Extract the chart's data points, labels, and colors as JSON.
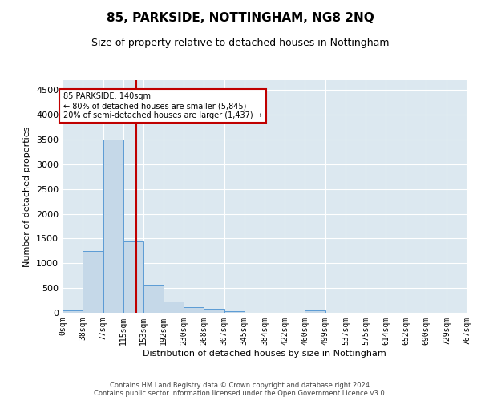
{
  "title": "85, PARKSIDE, NOTTINGHAM, NG8 2NQ",
  "subtitle": "Size of property relative to detached houses in Nottingham",
  "xlabel": "Distribution of detached houses by size in Nottingham",
  "ylabel": "Number of detached properties",
  "footer_line1": "Contains HM Land Registry data © Crown copyright and database right 2024.",
  "footer_line2": "Contains public sector information licensed under the Open Government Licence v3.0.",
  "bin_edges": [
    0,
    38,
    77,
    115,
    153,
    192,
    230,
    268,
    307,
    345,
    384,
    422,
    460,
    499,
    537,
    575,
    614,
    652,
    690,
    729,
    767
  ],
  "bar_heights": [
    50,
    1250,
    3500,
    1450,
    575,
    230,
    120,
    80,
    30,
    5,
    5,
    5,
    50,
    5,
    0,
    0,
    0,
    0,
    0,
    0
  ],
  "bar_color": "#c5d8e8",
  "bar_edge_color": "#5b9bd5",
  "property_line_x": 140,
  "property_line_color": "#c00000",
  "annotation_text": "85 PARKSIDE: 140sqm\n← 80% of detached houses are smaller (5,845)\n20% of semi-detached houses are larger (1,437) →",
  "annotation_box_color": "#c00000",
  "ylim": [
    0,
    4700
  ],
  "yticks": [
    0,
    500,
    1000,
    1500,
    2000,
    2500,
    3000,
    3500,
    4000,
    4500
  ],
  "background_color": "#dce8f0",
  "grid_color": "#ffffff",
  "title_fontsize": 11,
  "subtitle_fontsize": 9,
  "axis_label_fontsize": 8,
  "tick_fontsize": 7
}
